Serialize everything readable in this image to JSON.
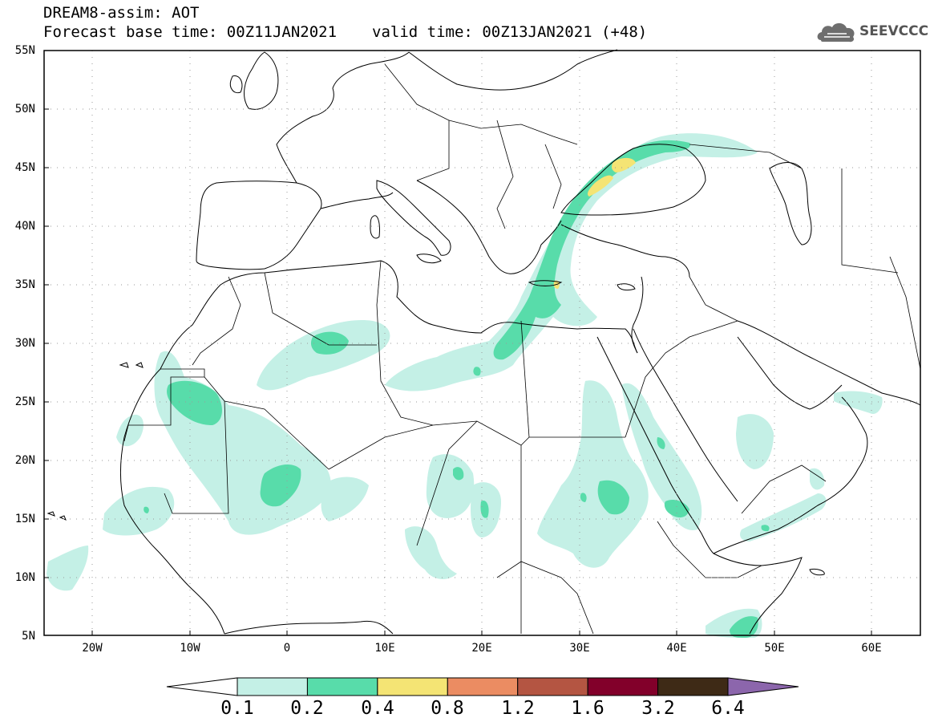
{
  "header": {
    "title_line1": "DREAM8-assim: AOT",
    "forecast_base": "Forecast base time: 00Z11JAN2021",
    "valid_time": "valid time: 00Z13JAN2021 (+48)",
    "logo_text": "SEEVCCC"
  },
  "axes": {
    "lat_labels": [
      "55N",
      "50N",
      "45N",
      "40N",
      "35N",
      "30N",
      "25N",
      "20N",
      "15N",
      "10N",
      "5N"
    ],
    "lon_labels": [
      "20W",
      "10W",
      "0",
      "10E",
      "20E",
      "30E",
      "40E",
      "50E",
      "60E"
    ],
    "lat_range": [
      5,
      55
    ],
    "lon_range": [
      -25,
      65
    ]
  },
  "colorbar": {
    "colors": [
      "#ffffff",
      "#c4f0e6",
      "#58dcaa",
      "#f4e474",
      "#eb8c62",
      "#b45542",
      "#82002a",
      "#3e2a16",
      "#8c66ac"
    ],
    "labels": [
      "0.1",
      "0.2",
      "0.4",
      "0.8",
      "1.2",
      "1.6",
      "3.2",
      "6.4"
    ]
  }
}
